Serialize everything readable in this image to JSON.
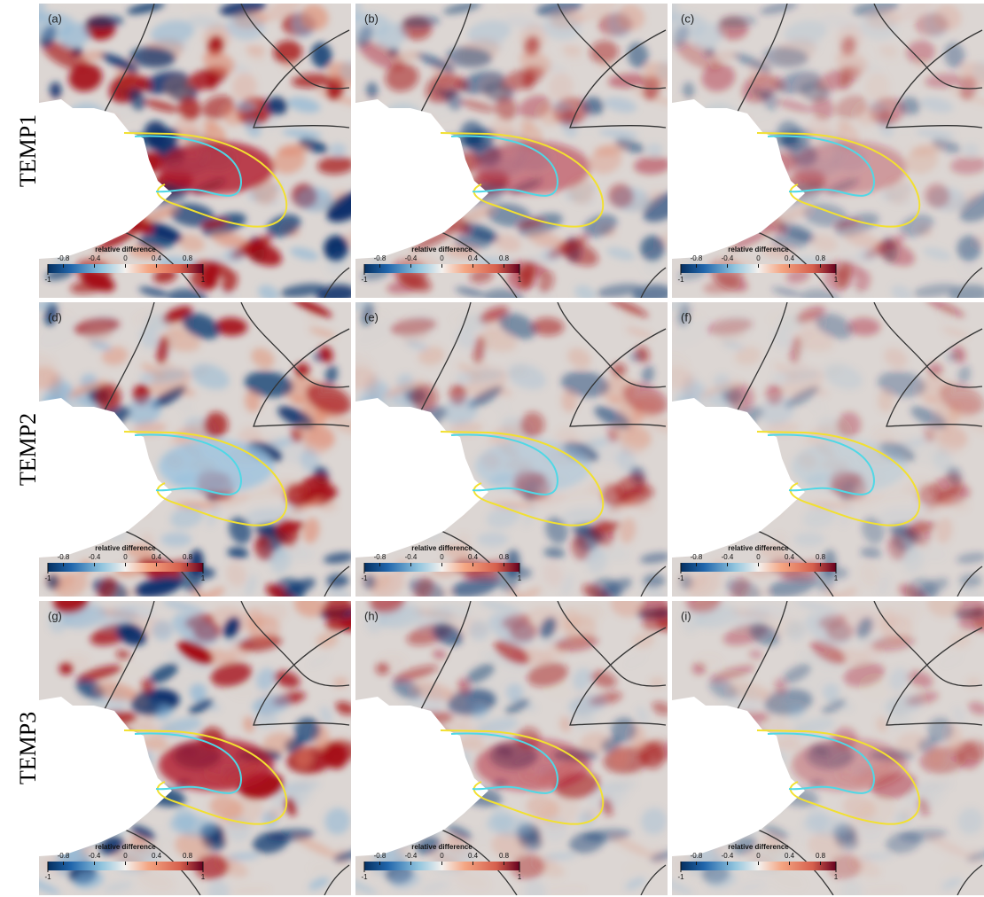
{
  "rows": [
    "TEMP1",
    "TEMP2",
    "TEMP3"
  ],
  "panels": [
    "(a)",
    "(b)",
    "(c)",
    "(d)",
    "(e)",
    "(f)",
    "(g)",
    "(h)",
    "(i)"
  ],
  "colorbar": {
    "title": "relative difference",
    "lim": [
      -1,
      1
    ],
    "ticks": [
      -0.8,
      -0.4,
      0,
      0.4,
      0.8
    ]
  }
}
